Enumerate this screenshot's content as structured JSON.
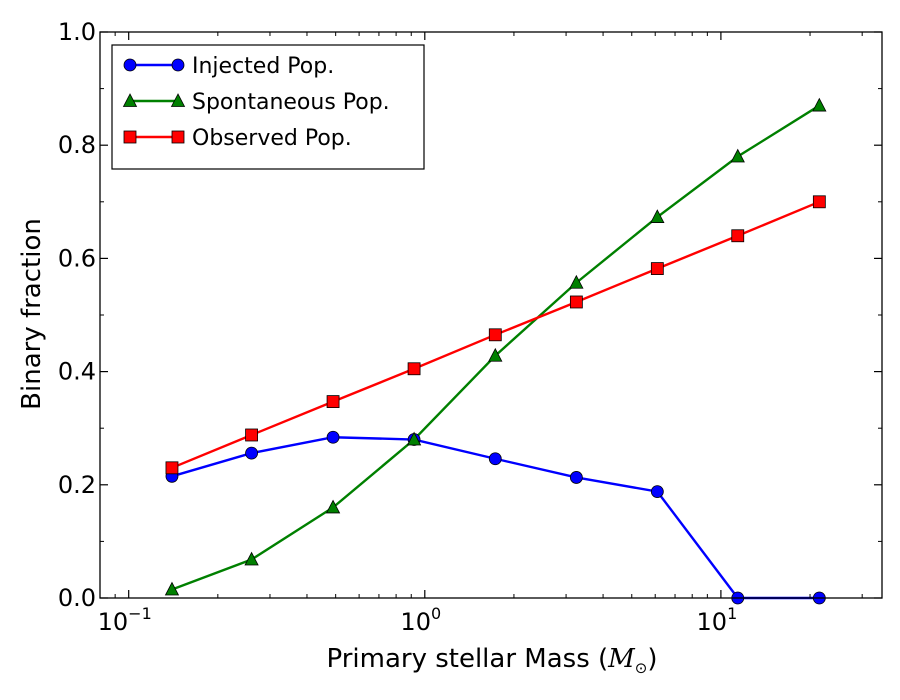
{
  "chart_data": {
    "type": "line",
    "x_scale": "log",
    "xlim": [
      0.08,
      35
    ],
    "ylim": [
      0.0,
      1.0
    ],
    "xlabel_text": "Primary stellar Mass (",
    "xlabel_unit": "M",
    "xlabel_unit_sub": "⊙",
    "xlabel_close": ")",
    "ylabel": "Binary fraction",
    "x_ticks": [
      {
        "value": 0.1,
        "base": "10",
        "exp": "−1"
      },
      {
        "value": 1,
        "base": "10",
        "exp": "0"
      },
      {
        "value": 10,
        "base": "10",
        "exp": "1"
      }
    ],
    "y_ticks": [
      {
        "value": 0.0,
        "label": "0.0"
      },
      {
        "value": 0.2,
        "label": "0.2"
      },
      {
        "value": 0.4,
        "label": "0.4"
      },
      {
        "value": 0.6,
        "label": "0.6"
      },
      {
        "value": 0.8,
        "label": "0.8"
      },
      {
        "value": 1.0,
        "label": "1.0"
      }
    ],
    "legend_position": "top-left",
    "grid": false,
    "x": [
      0.14,
      0.26,
      0.49,
      0.92,
      1.73,
      3.25,
      6.1,
      11.4,
      21.5
    ],
    "series": [
      {
        "name": "Injected Pop.",
        "color": "#0000ff",
        "marker": "circle",
        "values": [
          0.215,
          0.256,
          0.284,
          0.28,
          0.246,
          0.213,
          0.188,
          0.0,
          0.0
        ]
      },
      {
        "name": "Spontaneous Pop.",
        "color": "#008000",
        "marker": "triangle",
        "values": [
          0.015,
          0.068,
          0.16,
          0.28,
          0.428,
          0.557,
          0.673,
          0.78,
          0.87
        ]
      },
      {
        "name": "Observed Pop.",
        "color": "#ff0000",
        "marker": "square",
        "values": [
          0.23,
          0.288,
          0.347,
          0.405,
          0.465,
          0.523,
          0.582,
          0.64,
          0.7
        ]
      }
    ]
  }
}
